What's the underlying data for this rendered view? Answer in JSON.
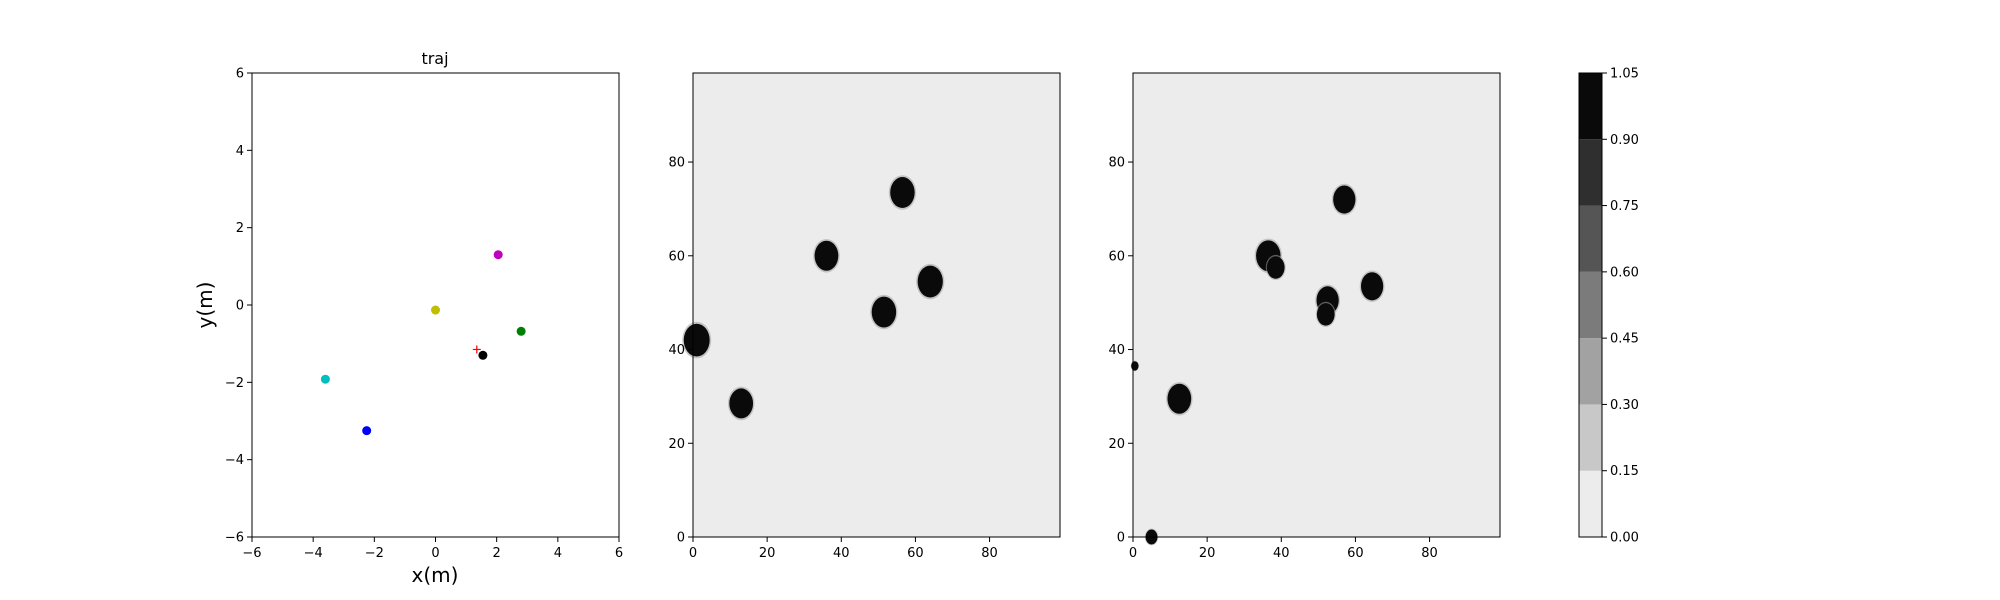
{
  "chart_data": [
    {
      "type": "scatter",
      "title": "traj",
      "xlabel": "x(m)",
      "ylabel": "y(m)",
      "xlim": [
        -6,
        6
      ],
      "ylim": [
        -6,
        6
      ],
      "xticks": [
        -6,
        -4,
        -2,
        0,
        2,
        4,
        6
      ],
      "yticks": [
        -6,
        -4,
        -2,
        0,
        2,
        4,
        6
      ],
      "grid": false,
      "points": [
        {
          "x": 2.05,
          "y": 1.3,
          "color": "#bf00bf"
        },
        {
          "x": 0.0,
          "y": -0.13,
          "color": "#bfbf00"
        },
        {
          "x": 2.8,
          "y": -0.68,
          "color": "#008000"
        },
        {
          "x": 1.55,
          "y": -1.3,
          "color": "#000000"
        },
        {
          "x": -3.6,
          "y": -1.92,
          "color": "#00bfbf"
        },
        {
          "x": -2.25,
          "y": -3.25,
          "color": "#0000ff"
        }
      ],
      "markers": [
        {
          "x": 1.35,
          "y": -1.15,
          "symbol": "+",
          "color": "#ff0000"
        }
      ]
    },
    {
      "type": "heatmap",
      "title": "",
      "xlabel": "",
      "ylabel": "",
      "xlim": [
        0,
        99
      ],
      "ylim": [
        0,
        99
      ],
      "xticks": [
        0,
        20,
        40,
        60,
        80
      ],
      "yticks": [
        0,
        20,
        40,
        60,
        80
      ],
      "background_value": 0.05,
      "blobs": [
        {
          "x": 1,
          "y": 42,
          "r": 3.5
        },
        {
          "x": 13,
          "y": 28.5,
          "r": 3.2
        },
        {
          "x": 36,
          "y": 60,
          "r": 3.2
        },
        {
          "x": 51.5,
          "y": 48,
          "r": 3.3
        },
        {
          "x": 56.5,
          "y": 73.5,
          "r": 3.3
        },
        {
          "x": 64,
          "y": 54.5,
          "r": 3.4
        }
      ]
    },
    {
      "type": "heatmap",
      "title": "",
      "xlabel": "",
      "ylabel": "",
      "xlim": [
        0,
        99
      ],
      "ylim": [
        0,
        99
      ],
      "xticks": [
        0,
        20,
        40,
        60,
        80
      ],
      "yticks": [
        0,
        20,
        40,
        60,
        80
      ],
      "background_value": 0.05,
      "blobs": [
        {
          "x": 12.5,
          "y": 29.5,
          "r": 3.2
        },
        {
          "x": 36.5,
          "y": 60,
          "r": 3.3
        },
        {
          "x": 38.5,
          "y": 57.5,
          "r": 2.4
        },
        {
          "x": 52.5,
          "y": 50.5,
          "r": 3.0
        },
        {
          "x": 52,
          "y": 47.5,
          "r": 2.4
        },
        {
          "x": 57,
          "y": 72,
          "r": 3.0
        },
        {
          "x": 64.5,
          "y": 53.5,
          "r": 3.0
        },
        {
          "x": 0.5,
          "y": 36.5,
          "r": 1.0
        },
        {
          "x": 5,
          "y": 0,
          "r": 1.6
        }
      ]
    }
  ],
  "colorbar": {
    "levels": [
      0.0,
      0.15,
      0.3,
      0.45,
      0.6,
      0.75,
      0.9,
      1.05
    ],
    "tick_labels": [
      "0.00",
      "0.15",
      "0.30",
      "0.45",
      "0.60",
      "0.75",
      "0.90",
      "1.05"
    ],
    "colors": [
      "#ececec",
      "#c8c8c8",
      "#a2a2a2",
      "#7b7b7b",
      "#555555",
      "#2f2f2f",
      "#0a0a0a"
    ]
  }
}
